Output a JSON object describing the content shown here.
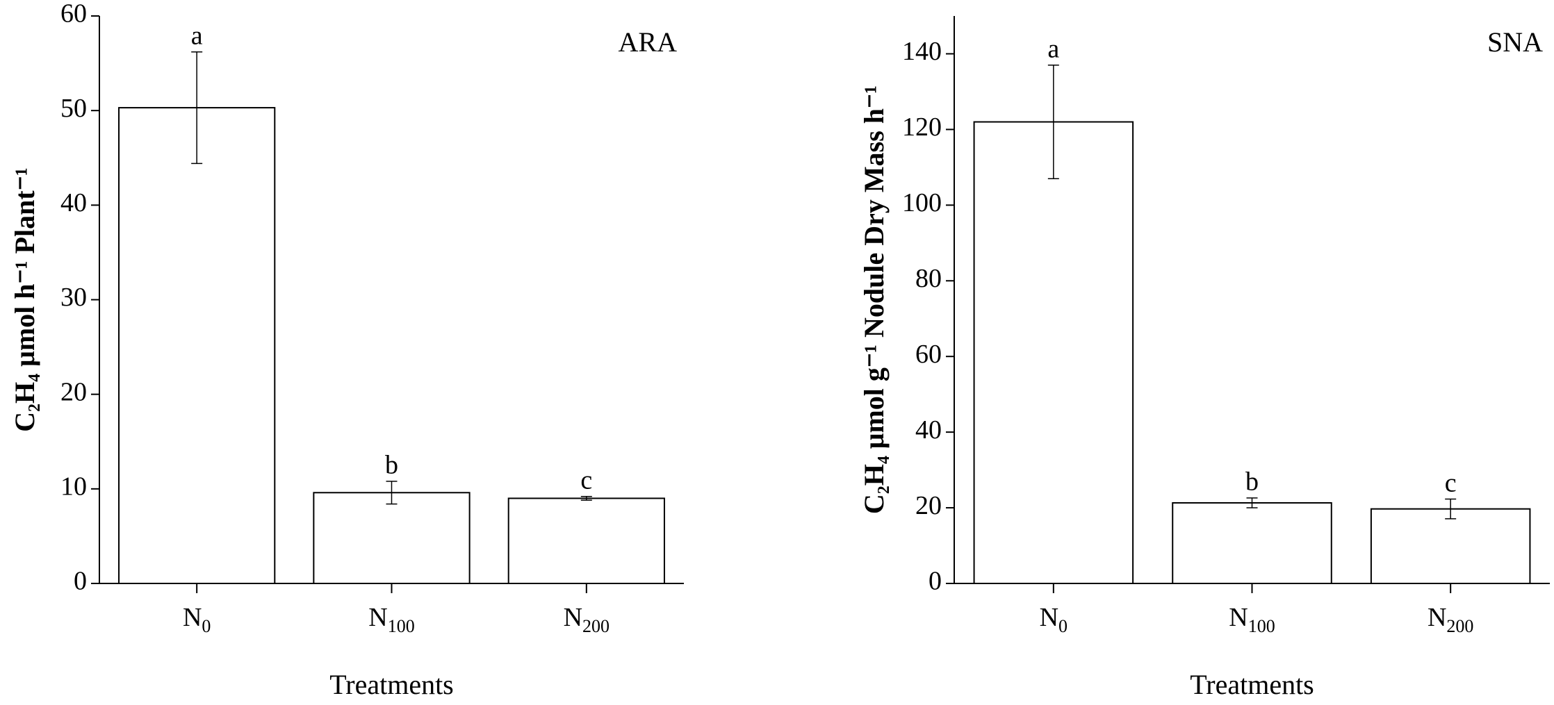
{
  "chart_data": [
    {
      "type": "bar",
      "title": "ARA",
      "x_label": "Treatments",
      "y_label": "C₂H₄ μmol h⁻¹ Plant⁻¹",
      "categories": [
        "N0",
        "N100",
        "N200"
      ],
      "values": [
        50.3,
        9.6,
        9.0
      ],
      "errors": [
        5.9,
        1.2,
        0.2
      ],
      "significance": [
        "a",
        "b",
        "c"
      ],
      "color": "#ffffff",
      "ylim": [
        0,
        60
      ],
      "yticks": [
        0,
        10,
        20,
        30,
        40,
        50,
        60
      ]
    },
    {
      "type": "bar",
      "title": "SNA",
      "x_label": "Treatments",
      "y_label": "C₂H₄ μmol g⁻¹ Nodule Dry Mass h⁻¹",
      "categories": [
        "N0",
        "N100",
        "N200"
      ],
      "values": [
        122,
        21.3,
        19.7
      ],
      "errors": [
        15,
        1.3,
        2.6
      ],
      "significance": [
        "a",
        "b",
        "c"
      ],
      "color": "#ffffff",
      "ylim": [
        0,
        150
      ],
      "yticks": [
        0,
        20,
        40,
        60,
        80,
        100,
        120,
        140
      ]
    }
  ]
}
